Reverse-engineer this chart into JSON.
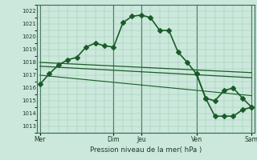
{
  "background_color": "#cce8dc",
  "grid_color": "#8fc8a8",
  "line_color": "#1a5c28",
  "marker_color": "#1a5c28",
  "xlabel_text": "Pression niveau de la mer( hPa )",
  "ylim": [
    1012.5,
    1022.5
  ],
  "yticks": [
    1013,
    1014,
    1015,
    1016,
    1017,
    1018,
    1019,
    1020,
    1021,
    1022
  ],
  "xtick_labels": [
    "Mer",
    "Dim",
    "Jeu",
    "Ven",
    "Sam"
  ],
  "xtick_positions": [
    0,
    8,
    11,
    17,
    23
  ],
  "vlines_dark": [
    0,
    8,
    11,
    17,
    23
  ],
  "series_main": {
    "x": [
      0,
      1,
      2,
      3,
      4,
      5,
      6,
      7,
      8,
      9,
      10,
      11,
      12,
      13,
      14,
      15,
      16,
      17,
      18,
      19,
      20,
      21,
      22,
      23
    ],
    "y": [
      1016.3,
      1017.1,
      1017.8,
      1018.2,
      1018.4,
      1019.2,
      1019.5,
      1019.3,
      1019.2,
      1021.1,
      1021.6,
      1021.7,
      1021.5,
      1020.5,
      1020.5,
      1018.8,
      1018.0,
      1017.1,
      1015.2,
      1015.0,
      1015.8,
      1016.0,
      1015.2,
      1014.5
    ],
    "linewidth": 1.2,
    "markersize": 3
  },
  "series_ref1": {
    "x": [
      0,
      23
    ],
    "y": [
      1018.0,
      1017.2
    ],
    "linewidth": 0.9
  },
  "series_ref2": {
    "x": [
      0,
      23
    ],
    "y": [
      1017.7,
      1016.8
    ],
    "linewidth": 0.9
  },
  "series_ref3": {
    "x": [
      0,
      23
    ],
    "y": [
      1017.0,
      1015.4
    ],
    "linewidth": 0.8
  },
  "series_right": {
    "x": [
      17,
      18,
      19,
      20,
      21,
      22,
      23
    ],
    "y": [
      1017.1,
      1015.2,
      1013.8,
      1013.8,
      1013.8,
      1014.3,
      1014.5
    ],
    "linewidth": 1.2,
    "markersize": 3
  }
}
